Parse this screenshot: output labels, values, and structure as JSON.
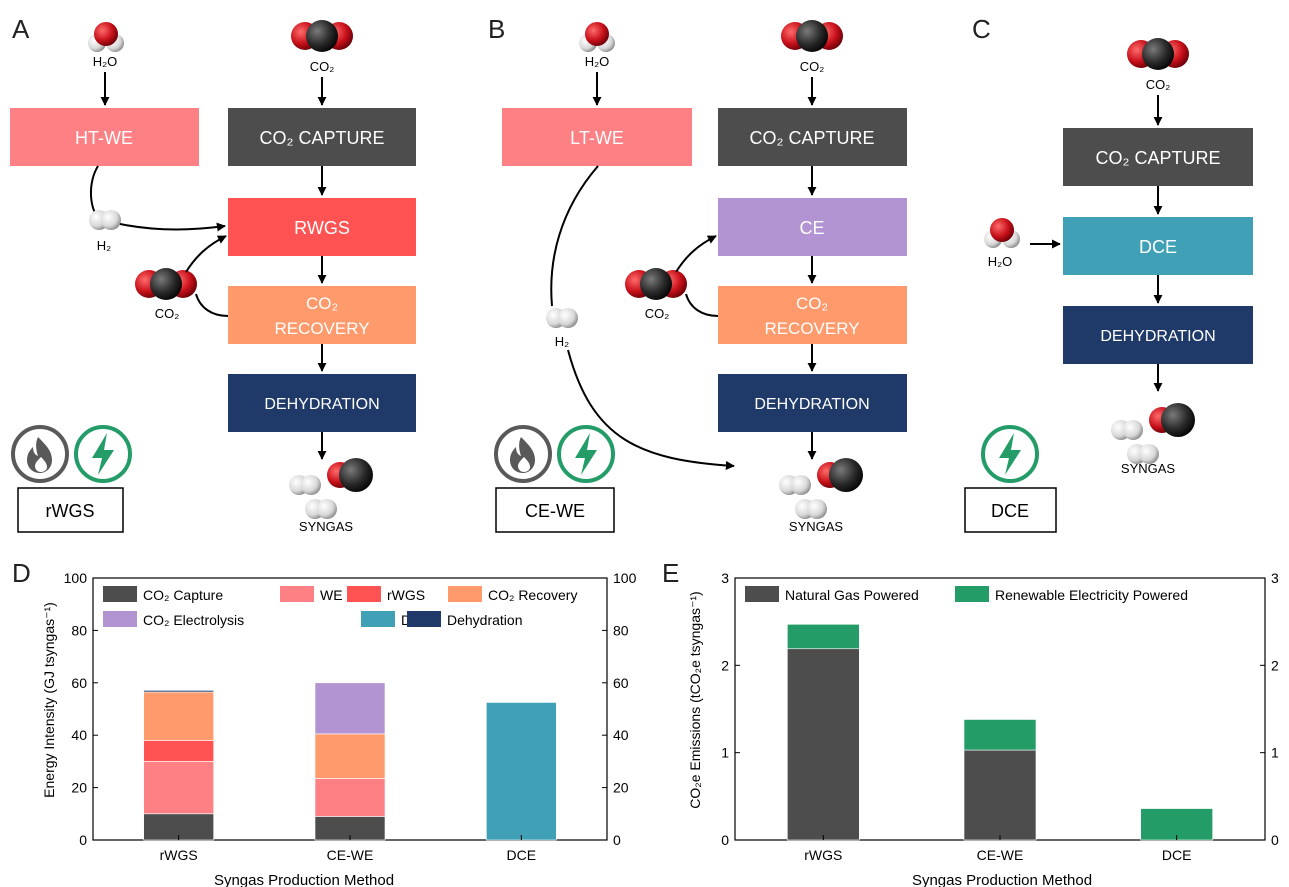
{
  "panels": {
    "A": {
      "letter": "A",
      "h2o_label": "H₂O",
      "co2_label": "CO₂",
      "we_box": "HT-WE",
      "capture_box": "CO₂ CAPTURE",
      "conversion_box": "RWGS",
      "recovery_line1": "CO₂",
      "recovery_line2": "RECOVERY",
      "dehydration_box": "DEHYDRATION",
      "h2_label": "H₂",
      "recycle_co2_label": "CO₂",
      "syngas_label": "SYNGAS",
      "method_label": "rWGS",
      "energy_sources": [
        "flame-icon",
        "lightning-icon"
      ]
    },
    "B": {
      "letter": "B",
      "h2o_label": "H₂O",
      "co2_label": "CO₂",
      "we_box": "LT-WE",
      "capture_box": "CO₂ CAPTURE",
      "conversion_box": "CE",
      "recovery_line1": "CO₂",
      "recovery_line2": "RECOVERY",
      "dehydration_box": "DEHYDRATION",
      "h2_label": "H₂",
      "recycle_co2_label": "CO₂",
      "syngas_label": "SYNGAS",
      "method_label": "CE-WE",
      "energy_sources": [
        "flame-icon",
        "lightning-icon"
      ]
    },
    "C": {
      "letter": "C",
      "co2_label": "CO₂",
      "capture_box": "CO₂ CAPTURE",
      "h2o_label": "H₂O",
      "conversion_box": "DCE",
      "dehydration_box": "DEHYDRATION",
      "syngas_label": "SYNGAS",
      "method_label": "DCE",
      "energy_sources": [
        "lightning-icon"
      ]
    }
  },
  "colors": {
    "capture": "#4d4d4d",
    "ht_we": "#fc8084",
    "rwgs": "#ff5252",
    "recovery": "#fe9a6c",
    "ce": "#b294d3",
    "dce": "#3fa0b6",
    "dehydration": "#1f3a68",
    "natural_gas": "#4d4d4d",
    "renewable": "#239c68"
  },
  "chart_data": [
    {
      "panel": "D",
      "type": "bar",
      "stacked": true,
      "categories": [
        "rWGS",
        "CE-WE",
        "DCE"
      ],
      "series": [
        {
          "name": "CO₂ Capture",
          "color": "#4d4d4d",
          "values": [
            10,
            9,
            0
          ]
        },
        {
          "name": "WE",
          "color": "#fc8084",
          "values": [
            20,
            14.5,
            0
          ]
        },
        {
          "name": "rWGS",
          "color": "#ff5252",
          "values": [
            8,
            0,
            0
          ]
        },
        {
          "name": "CO₂ Recovery",
          "color": "#fe9a6c",
          "values": [
            18.5,
            17,
            0
          ]
        },
        {
          "name": "CO₂ Electrolysis",
          "color": "#b294d3",
          "values": [
            0,
            19.5,
            0
          ]
        },
        {
          "name": "DCE",
          "color": "#3fa0b6",
          "values": [
            0,
            0,
            52.5
          ]
        },
        {
          "name": "Dehydration",
          "color": "#1f3a68",
          "values": [
            0.6,
            0,
            0
          ]
        }
      ],
      "ylabel": "Energy Intensity (GJ tsyngas⁻¹)",
      "xlabel": "Syngas Production Method",
      "ylim": [
        0,
        100
      ],
      "yticks": [
        0,
        20,
        40,
        60,
        80,
        100
      ],
      "legend_position": "top"
    },
    {
      "panel": "E",
      "type": "bar",
      "stacked": true,
      "categories": [
        "rWGS",
        "CE-WE",
        "DCE"
      ],
      "series": [
        {
          "name": "Natural Gas Powered",
          "color": "#4d4d4d",
          "values": [
            2.19,
            1.03,
            0
          ]
        },
        {
          "name": "Renewable Electricity Powered",
          "color": "#239c68",
          "values": [
            0.28,
            0.35,
            0.36
          ]
        }
      ],
      "ylabel": "CO₂e Emissions (tCO₂e tsyngas⁻¹)",
      "xlabel": "Syngas Production Method",
      "ylim": [
        0,
        3
      ],
      "yticks": [
        0,
        1,
        2,
        3
      ],
      "legend_position": "top"
    }
  ],
  "chart_labels": {
    "D": "D",
    "E": "E"
  }
}
